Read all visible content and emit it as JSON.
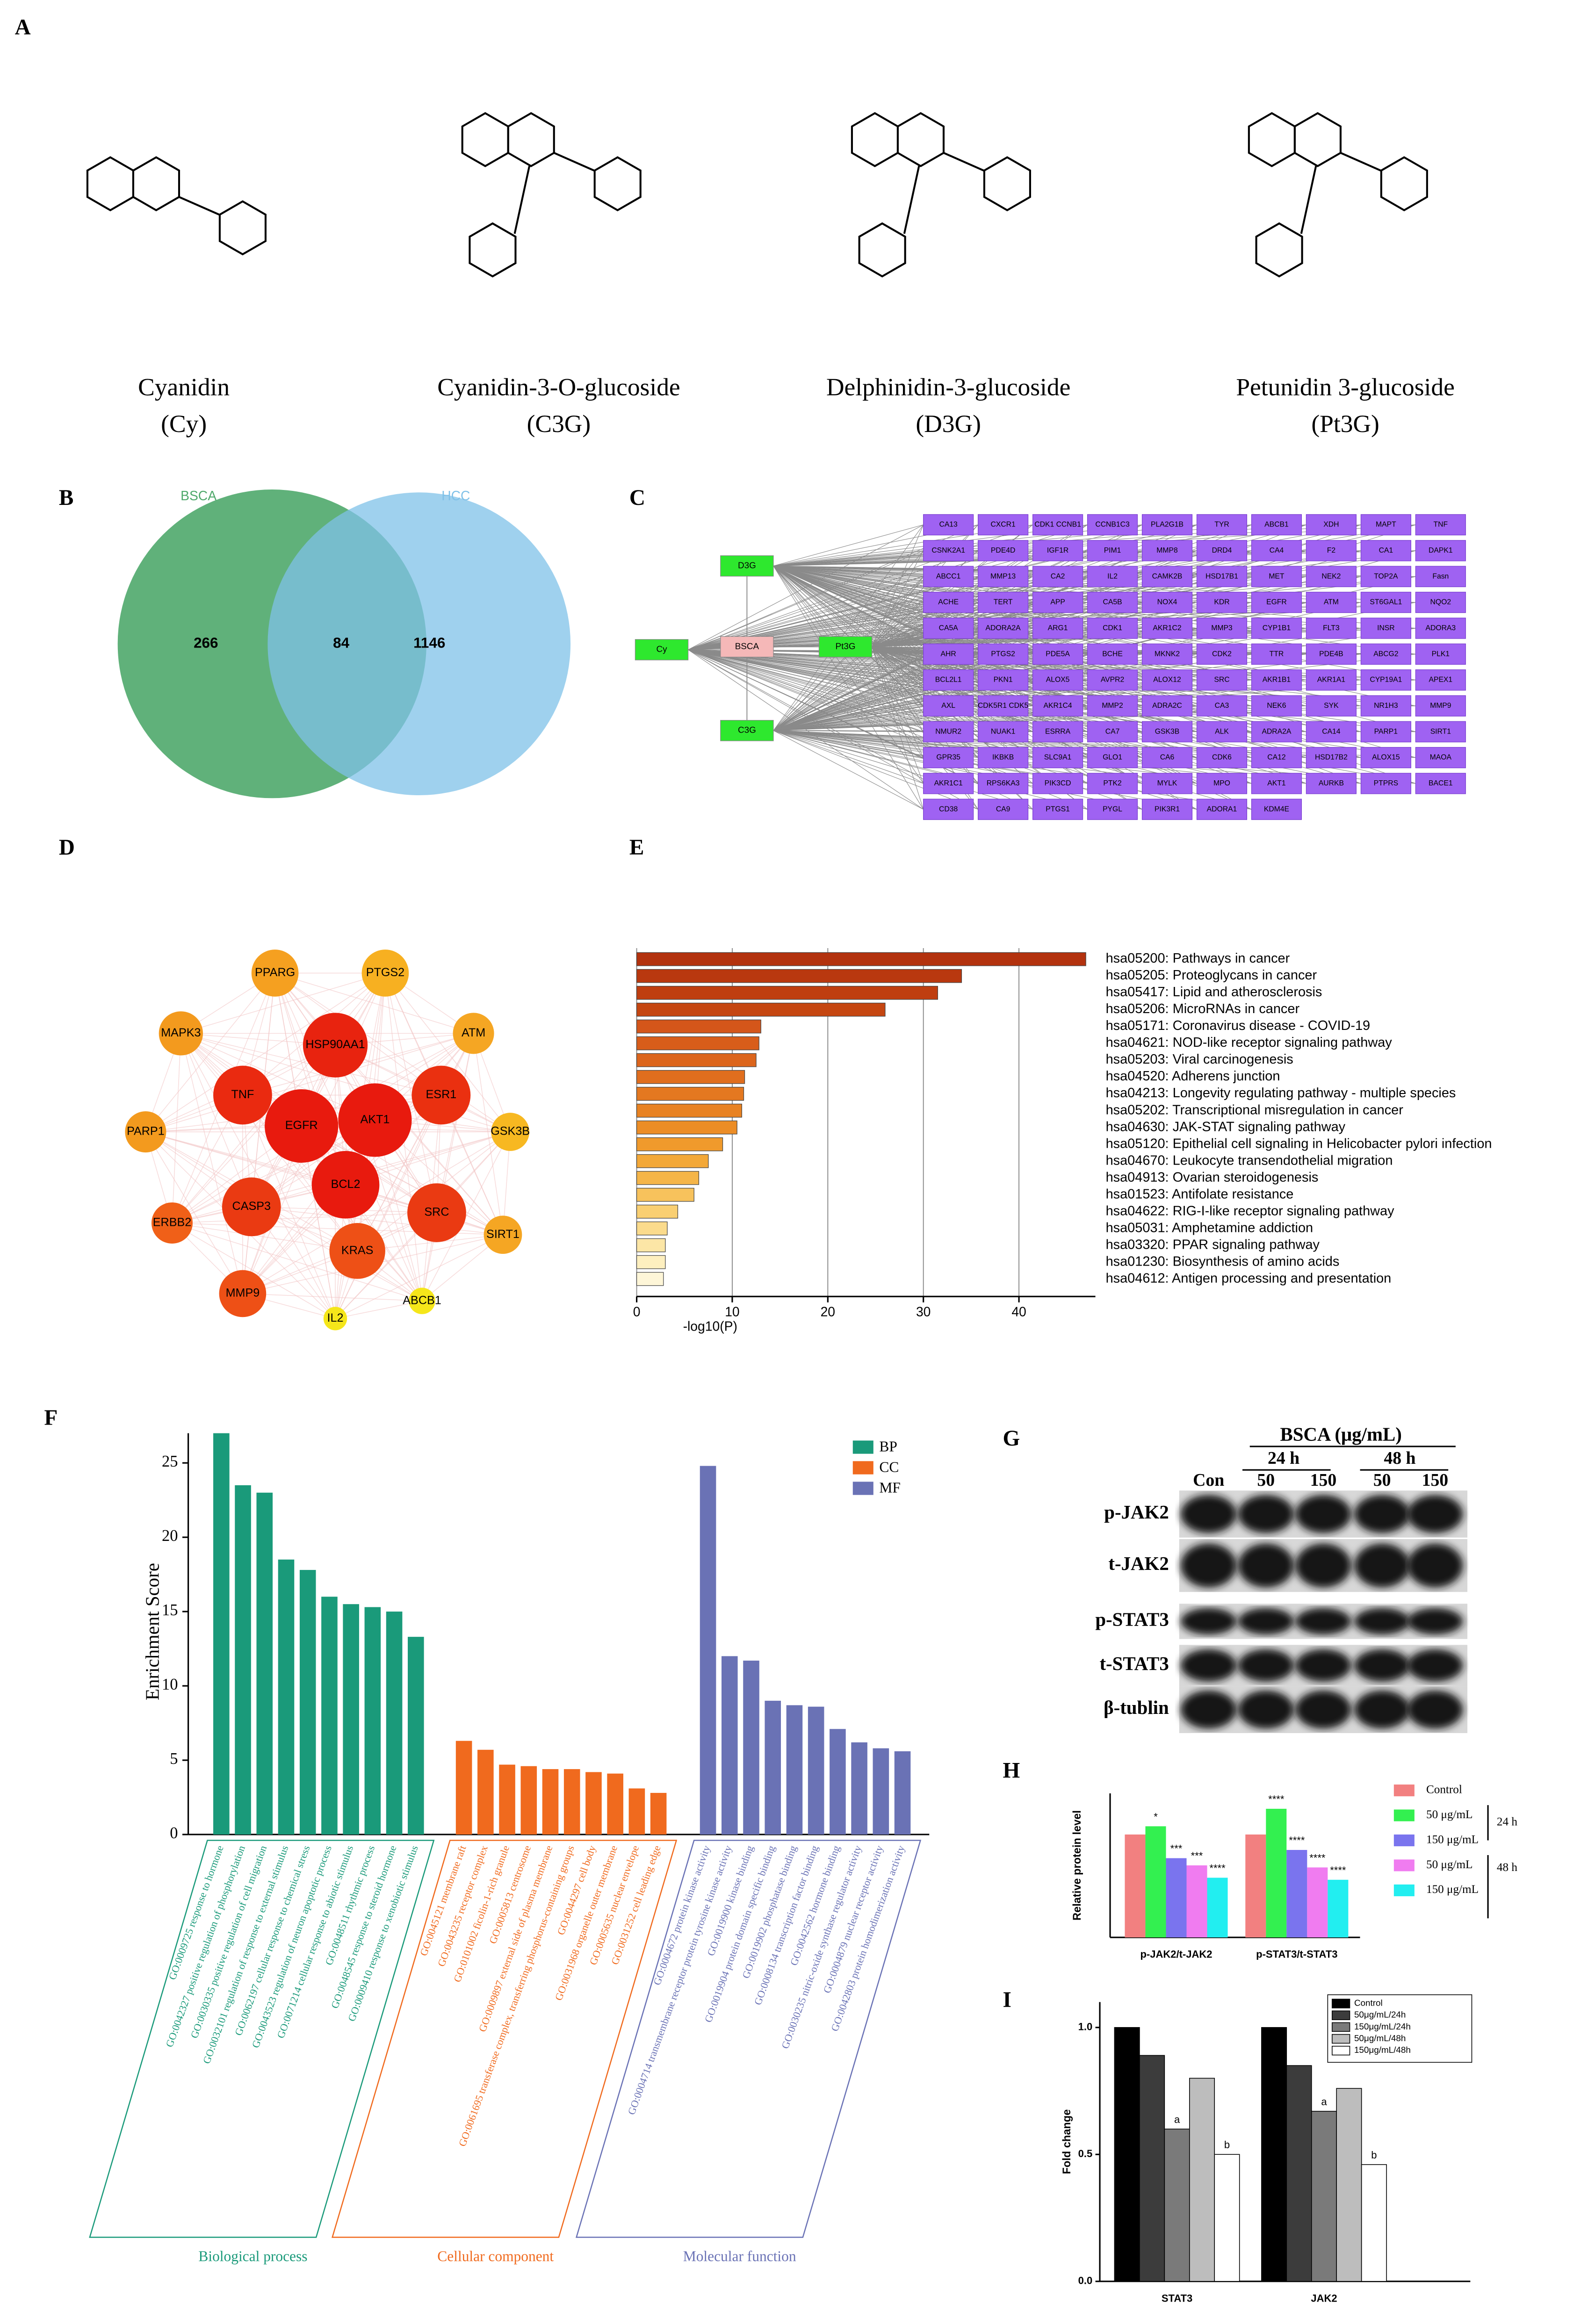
{
  "panel_labels": [
    "A",
    "B",
    "C",
    "D",
    "E",
    "F",
    "G",
    "H",
    "I"
  ],
  "compounds": [
    {
      "name": "Cyanidin",
      "abbr": "(Cy)"
    },
    {
      "name": "Cyanidin-3-O-glucoside",
      "abbr": "(C3G)"
    },
    {
      "name": "Delphinidin-3-glucoside",
      "abbr": "(D3G)"
    },
    {
      "name": "Petunidin 3-glucoside",
      "abbr": "(Pt3G)"
    }
  ],
  "venn": {
    "sets": [
      {
        "name": "BSCA",
        "color": "#4fa96b"
      },
      {
        "name": "HCC",
        "color": "#7fc1e8"
      }
    ],
    "counts": [
      266,
      84,
      1146
    ]
  },
  "compound_target_network": {
    "sources": [
      {
        "label": "D3G",
        "color": "#2ee82e"
      },
      {
        "label": "Cy",
        "color": "#2ee82e"
      },
      {
        "label": "BSCA",
        "color": "#f5b8b8"
      },
      {
        "label": "Pt3G",
        "color": "#2ee82e"
      },
      {
        "label": "C3G",
        "color": "#2ee82e"
      }
    ],
    "target_color": "#9f62f2",
    "targets": [
      "CA13",
      "CXCR1",
      "CDK1 CCNB1",
      "CCNB1C3",
      "PLA2G1B",
      "TYR",
      "ABCB1",
      "XDH",
      "MAPT",
      "TNF",
      "CSNK2A1",
      "PDE4D",
      "IGF1R",
      "PIM1",
      "MMP8",
      "DRD4",
      "CA4",
      "F2",
      "CA1",
      "DAPK1",
      "ABCC1",
      "MMP13",
      "CA2",
      "IL2",
      "CAMK2B",
      "HSD17B1",
      "MET",
      "NEK2",
      "TOP2A",
      "Fasn",
      "ACHE",
      "TERT",
      "APP",
      "CA5B",
      "NOX4",
      "KDR",
      "EGFR",
      "ATM",
      "ST6GAL1",
      "NQO2",
      "CA5A",
      "ADORA2A",
      "ARG1",
      "CDK1",
      "AKR1C2",
      "MMP3",
      "CYP1B1",
      "FLT3",
      "INSR",
      "ADORA3",
      "AHR",
      "PTGS2",
      "PDE5A",
      "BCHE",
      "MKNK2",
      "CDK2",
      "TTR",
      "PDE4B",
      "ABCG2",
      "PLK1",
      "BCL2L1",
      "PKN1",
      "ALOX5",
      "AVPR2",
      "ALOX12",
      "SRC",
      "AKR1B1",
      "AKR1A1",
      "CYP19A1",
      "APEX1",
      "AXL",
      "CDK5R1 CDK5",
      "AKR1C4",
      "MMP2",
      "ADRA2C",
      "CA3",
      "NEK6",
      "SYK",
      "NR1H3",
      "MMP9",
      "NMUR2",
      "NUAK1",
      "ESRRA",
      "CA7",
      "GSK3B",
      "ALK",
      "ADRA2A",
      "CA14",
      "PARP1",
      "SIRT1",
      "GPR35",
      "IKBKB",
      "SLC9A1",
      "GLO1",
      "CA6",
      "CDK6",
      "CA12",
      "HSD17B2",
      "ALOX15",
      "MAOA",
      "AKR1C1",
      "RPS6KA3",
      "PIK3CD",
      "PTK2",
      "MYLK",
      "MPO",
      "AKT1",
      "AURKB",
      "PTPRS",
      "BACE1",
      "CD38",
      "CA9",
      "PTGS1",
      "PYGL",
      "PIK3R1",
      "ADORA1",
      "KDM4E"
    ]
  },
  "ppi_network": {
    "nodes": [
      {
        "label": "PPARG",
        "color": "#f5a020"
      },
      {
        "label": "PTGS2",
        "color": "#f7b021"
      },
      {
        "label": "MAPK3",
        "color": "#f39a1e"
      },
      {
        "label": "ATM",
        "color": "#f5a623"
      },
      {
        "label": "HSP90AA1",
        "color": "#e8230f"
      },
      {
        "label": "TNF",
        "color": "#ea2a10"
      },
      {
        "label": "EGFR",
        "color": "#e81a0e"
      },
      {
        "label": "AKT1",
        "color": "#e81a0e"
      },
      {
        "label": "ESR1",
        "color": "#ea3010"
      },
      {
        "label": "PARP1",
        "color": "#f39a1e"
      },
      {
        "label": "GSK3B",
        "color": "#f7b821"
      },
      {
        "label": "BCL2",
        "color": "#e81a0e"
      },
      {
        "label": "CASP3",
        "color": "#ea3a12"
      },
      {
        "label": "SRC",
        "color": "#ea3a12"
      },
      {
        "label": "ERBB2",
        "color": "#f06018"
      },
      {
        "label": "SIRT1",
        "color": "#f5a623"
      },
      {
        "label": "KRAS",
        "color": "#ee5016"
      },
      {
        "label": "MMP9",
        "color": "#ee5016"
      },
      {
        "label": "IL2",
        "color": "#f5e61a"
      },
      {
        "label": "ABCB1",
        "color": "#f5e61a"
      }
    ]
  },
  "western_blot": {
    "treatment": "BSCA (μg/mL)",
    "times": [
      "24 h",
      "48 h"
    ],
    "lanes": [
      "Con",
      "50",
      "150",
      "50",
      "150"
    ],
    "proteins": [
      "p-JAK2",
      "t-JAK2",
      "p-STAT3",
      "t-STAT3",
      "β-tublin"
    ]
  },
  "chart_data": [
    {
      "type": "hbar",
      "xlabel": "-log10(P)",
      "xlim": [
        0,
        48
      ],
      "xticks": [
        0,
        10,
        20,
        30,
        40
      ],
      "grid": true,
      "categories": [
        "hsa05200: Pathways in cancer",
        "hsa05205: Proteoglycans in cancer",
        "hsa05417: Lipid and atherosclerosis",
        "hsa05206: MicroRNAs in cancer",
        "hsa05171: Coronavirus disease - COVID-19",
        "hsa04621: NOD-like receptor signaling pathway",
        "hsa05203: Viral carcinogenesis",
        "hsa04520: Adherens junction",
        "hsa04213: Longevity regulating pathway - multiple species",
        "hsa05202: Transcriptional misregulation in cancer",
        "hsa04630: JAK-STAT signaling pathway",
        "hsa05120: Epithelial cell signaling in Helicobacter pylori infection",
        "hsa04670: Leukocyte transendothelial migration",
        "hsa04913: Ovarian steroidogenesis",
        "hsa01523: Antifolate resistance",
        "hsa04622: RIG-I-like receptor signaling pathway",
        "hsa05031: Amphetamine addiction",
        "hsa03320: PPAR signaling pathway",
        "hsa01230: Biosynthesis of amino acids",
        "hsa04612: Antigen processing and presentation"
      ],
      "values": [
        47,
        34,
        31.5,
        26,
        13,
        12.8,
        12.5,
        11.3,
        11.2,
        11,
        10.5,
        9,
        7.5,
        6.5,
        6,
        4.3,
        3.2,
        3,
        3,
        2.8
      ],
      "colors": [
        "#b3320e",
        "#b9380f",
        "#bf3e10",
        "#c54611",
        "#d4561a",
        "#d85d1a",
        "#dc651c",
        "#e06e1e",
        "#e47820",
        "#e88222",
        "#ec8d26",
        "#f09a2c",
        "#f3a838",
        "#f5b548",
        "#f7c25c",
        "#f9cf72",
        "#fbdb8c",
        "#fce6a6",
        "#fdefbf",
        "#fef6d8"
      ]
    },
    {
      "type": "groupbar",
      "ylabel": "Enrichment Score",
      "ylim": [
        0,
        27
      ],
      "yticks": [
        0,
        5,
        10,
        15,
        20,
        25
      ],
      "legend": "top-right",
      "series": [
        {
          "name": "BP",
          "group_label": "Biological process",
          "color": "#1a9a7a",
          "categories": [
            "GO:0009725 response to hormone",
            "GO:0042327 positive regulation of phosphorylation",
            "GO:0030335 positive regulation of cell migration",
            "GO:0032101 regulation of response to external stimulus",
            "GO:0062197 cellular response to chemical stress",
            "GO:0043523 regulation of neuron apoptotic process",
            "GO:0071214 cellular response to abiotic stimulus",
            "GO:0048511 rhythmic process",
            "GO:0048545 response to steroid hormone",
            "GO:0009410 response to xenobiotic stimulus"
          ],
          "values": [
            27,
            23.5,
            23,
            18.5,
            17.8,
            16,
            15.5,
            15.3,
            15,
            13.3
          ]
        },
        {
          "name": "CC",
          "group_label": "Cellular component",
          "color": "#f06a1e",
          "categories": [
            "GO:0045121 membrane raft",
            "GO:0043235 receptor complex",
            "GO:0101002 ficolin-1-rich granule",
            "GO:0005813 centrosome",
            "GO:0009897 external side of plasma membrane",
            "GO:0061695 transferase complex, transferring phosphorus-containing groups",
            "GO:0044297 cell body",
            "GO:0031968 organelle outer membrane",
            "GO:0005635 nuclear envelope",
            "GO:0031252 cell leading edge"
          ],
          "values": [
            6.3,
            5.7,
            4.7,
            4.6,
            4.4,
            4.4,
            4.2,
            4.1,
            3.1,
            2.8
          ]
        },
        {
          "name": "MF",
          "group_label": "Molecular function",
          "color": "#6a72b5",
          "categories": [
            "GO:0004672 protein kinase activity",
            "GO:0004714 transmembrane receptor protein tyrosine kinase activity",
            "GO:0019900 kinase binding",
            "GO:0019904 protein domain specific binding",
            "GO:0019902 phosphatase binding",
            "GO:0008134 transcription factor binding",
            "GO:0042562 hormone binding",
            "GO:0030235 nitric-oxide synthase regulator activity",
            "GO:0004879 nuclear receptor activity",
            "GO:0042803 protein homodimerization activity"
          ],
          "values": [
            24.8,
            12,
            11.7,
            9,
            8.7,
            8.6,
            7.1,
            6.2,
            5.8,
            5.6
          ]
        }
      ]
    },
    {
      "type": "clusterbar",
      "ylabel": "Relative protein level",
      "ylim": [
        0,
        1.4
      ],
      "legend": "right",
      "time_labels": [
        "24 h",
        "48 h"
      ],
      "categories": [
        "p-JAK2/t-JAK2",
        "p-STAT3/t-STAT3"
      ],
      "series": [
        {
          "name": "Control",
          "color": "#f28080",
          "values": [
            1,
            1
          ]
        },
        {
          "name": "50 μg/mL",
          "color": "#33f050",
          "values": [
            1.08,
            1.25
          ],
          "value_labels": [
            "*",
            "****"
          ]
        },
        {
          "name": "150 μg/mL",
          "color": "#7a74ee",
          "values": [
            0.77,
            0.85
          ],
          "value_labels": [
            "***",
            "****"
          ]
        },
        {
          "name": "50 μg/mL",
          "color": "#f07cf0",
          "values": [
            0.7,
            0.68
          ],
          "value_labels": [
            "***",
            "****"
          ]
        },
        {
          "name": "150 μg/mL",
          "color": "#22eef0",
          "values": [
            0.58,
            0.56
          ],
          "value_labels": [
            "****",
            "****"
          ]
        }
      ]
    },
    {
      "type": "clusterbar",
      "ylabel": "Fold change",
      "ylim": [
        0,
        1.1
      ],
      "legend": "top-right",
      "yticks": [
        {
          "value": 0,
          "label": "0.0"
        },
        {
          "value": 0.5,
          "label": "0.5"
        },
        {
          "value": 1,
          "label": "1.0"
        }
      ],
      "categories": [
        "STAT3",
        "JAK2"
      ],
      "series": [
        {
          "name": "Control",
          "color": "#000000",
          "values": [
            1,
            1
          ]
        },
        {
          "name": "50μg/mL/24h",
          "color": "#3c3c3c",
          "values": [
            0.89,
            0.85
          ]
        },
        {
          "name": "150μg/mL/24h",
          "color": "#7a7a7a",
          "values": [
            0.6,
            0.67
          ],
          "value_labels": [
            "a",
            "a"
          ]
        },
        {
          "name": "50μg/mL/48h",
          "color": "#bdbdbd",
          "values": [
            0.8,
            0.76
          ]
        },
        {
          "name": "150μg/mL/48h",
          "color": "#ffffff",
          "values": [
            0.5,
            0.46
          ],
          "value_labels": [
            "b",
            "b"
          ]
        }
      ]
    }
  ]
}
